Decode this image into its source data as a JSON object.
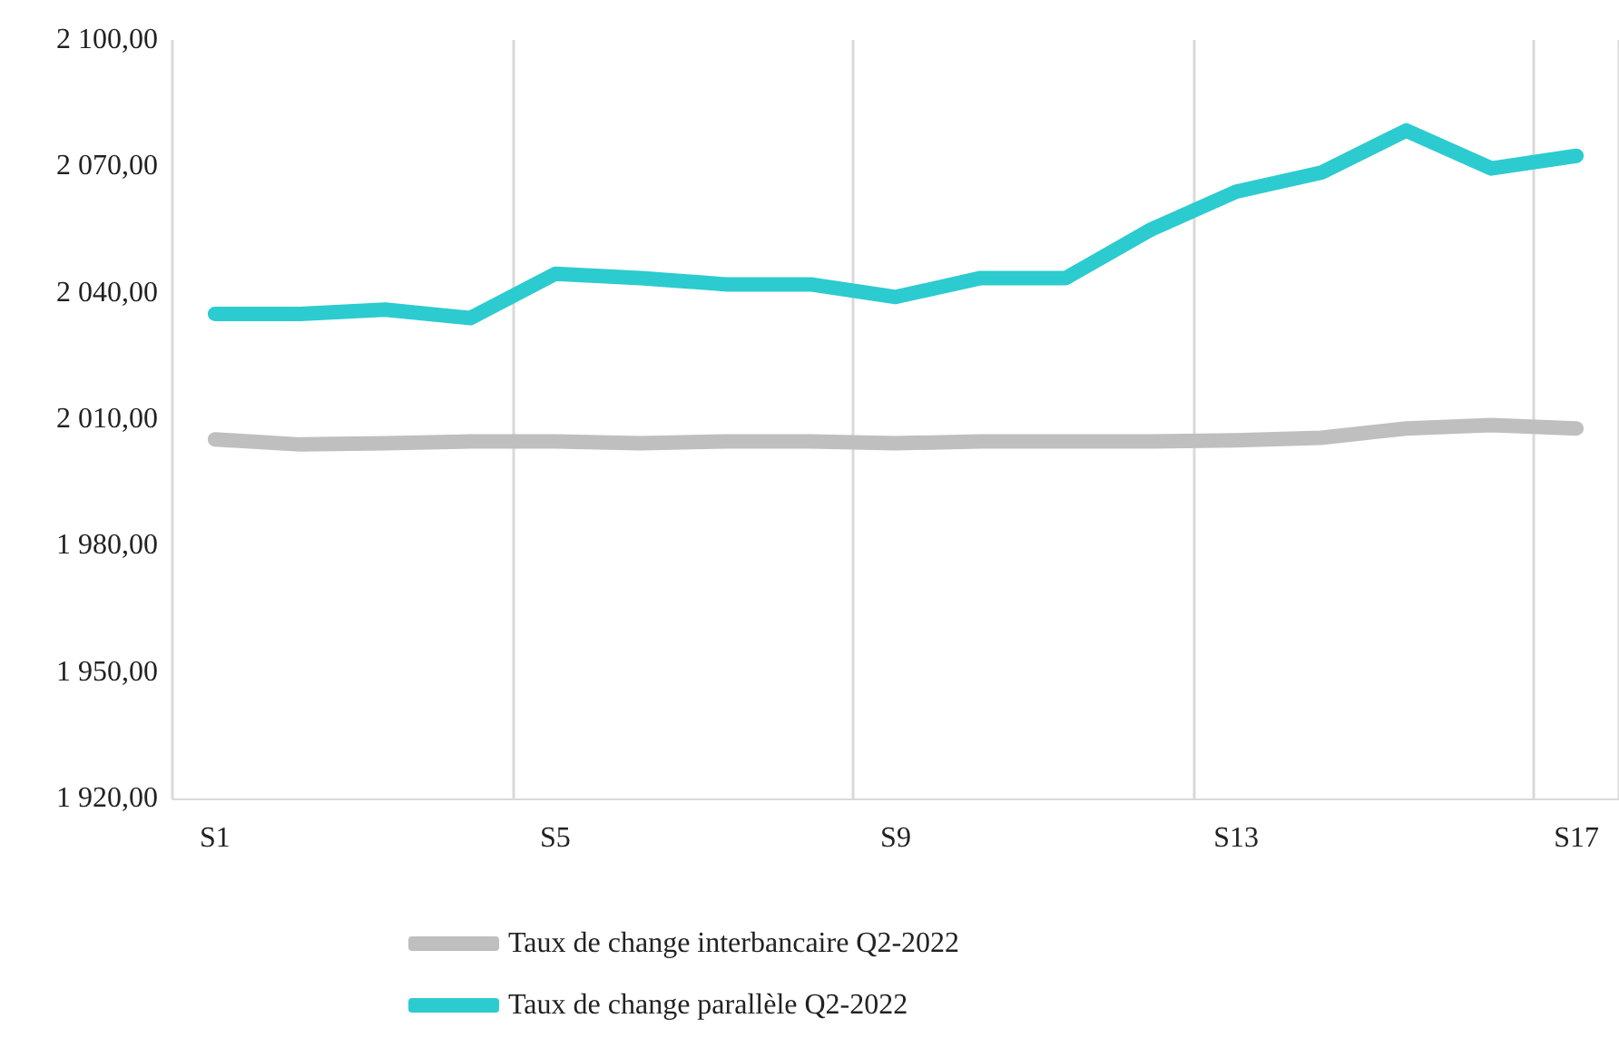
{
  "chart_data": {
    "type": "line",
    "categories": [
      "S1",
      null,
      null,
      null,
      "S5",
      null,
      null,
      null,
      "S9",
      null,
      null,
      null,
      "S13",
      null,
      null,
      null,
      "S17"
    ],
    "series": [
      {
        "name": "Taux de change interbancaire Q2-2022",
        "color": "#bfbfbf",
        "values": [
          2005.2,
          2004,
          2004.3,
          2004.7,
          2004.7,
          2004.3,
          2004.7,
          2004.7,
          2004.3,
          2004.7,
          2004.7,
          2004.7,
          2005,
          2005.6,
          2007.8,
          2008.6,
          2007.8
        ]
      },
      {
        "name": "Taux de change parallèle Q2-2022",
        "color": "#2ccbd0",
        "values": [
          2035,
          2035,
          2036,
          2034,
          2044.5,
          2043.5,
          2042,
          2042,
          2039,
          2043.5,
          2043.5,
          2055,
          2064,
          2068.5,
          2078.5,
          2069.5,
          2072.5
        ]
      }
    ],
    "ylim": [
      1920,
      2100
    ],
    "yticks": [
      {
        "value": 1920,
        "label": "1 920,00"
      },
      {
        "value": 1950,
        "label": "1 950,00"
      },
      {
        "value": 1980,
        "label": "1 980,00"
      },
      {
        "value": 2010,
        "label": "2 010,00"
      },
      {
        "value": 2040,
        "label": "2 040,00"
      },
      {
        "value": 2070,
        "label": "2 070,00"
      },
      {
        "value": 2100,
        "label": "2 100,00"
      }
    ],
    "grid": "x",
    "legend": "bottom",
    "line_style": "solid"
  }
}
